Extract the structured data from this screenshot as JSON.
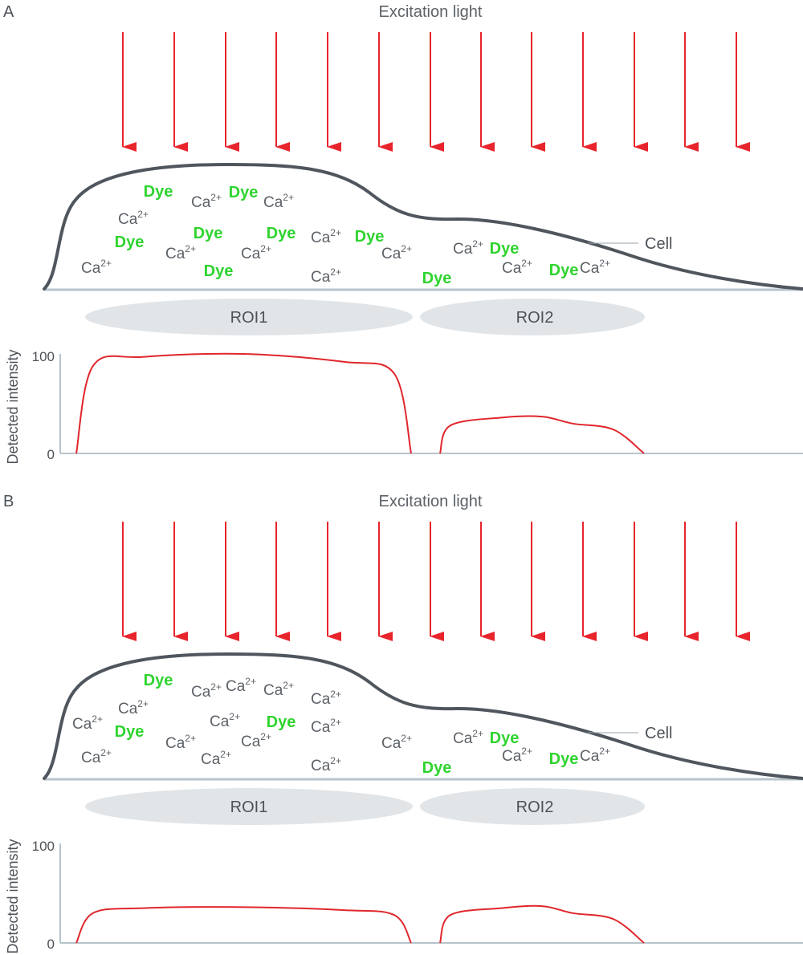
{
  "colors": {
    "arrow": "#e8242c",
    "cell_outline": "#4f565d",
    "baseline": "#b8c4cc",
    "roi_fill": "#e2e5e8",
    "dye": "#2fd42f",
    "ca": "#5d6268",
    "curve": "#e0262c"
  },
  "panels": [
    {
      "id": "A",
      "label": "A",
      "excitation_label": "Excitation light",
      "cell_label": "Cell",
      "rois": [
        "ROI1",
        "ROI2"
      ],
      "ylabel": "Detected intensity",
      "y_ticks": [
        "100",
        "0"
      ],
      "ions": {
        "text": "Ca",
        "charge": "2+"
      },
      "dye_label": "Dye",
      "chart_data": {
        "type": "line",
        "title": "",
        "xlabel": "",
        "ylabel": "Detected intensity",
        "ylim": [
          0,
          100
        ],
        "series": [
          {
            "name": "ROI1",
            "x": [
              0,
              0.05,
              0.2,
              0.5,
              0.8,
              0.95,
              1.0
            ],
            "values": [
              0,
              88,
              97,
              100,
              92,
              80,
              0
            ]
          },
          {
            "name": "ROI2",
            "x": [
              0,
              0.05,
              0.3,
              0.5,
              0.65,
              0.85,
              1.0
            ],
            "values": [
              0,
              28,
              36,
              37,
              30,
              24,
              0
            ]
          }
        ]
      }
    },
    {
      "id": "B",
      "label": "B",
      "excitation_label": "Excitation light",
      "cell_label": "Cell",
      "rois": [
        "ROI1",
        "ROI2"
      ],
      "ylabel": "Detected intensity",
      "y_ticks": [
        "100",
        "0"
      ],
      "ions": {
        "text": "Ca",
        "charge": "2+"
      },
      "dye_label": "Dye",
      "chart_data": {
        "type": "line",
        "title": "",
        "xlabel": "",
        "ylabel": "Detected intensity",
        "ylim": [
          0,
          100
        ],
        "series": [
          {
            "name": "ROI1",
            "x": [
              0,
              0.05,
              0.2,
              0.5,
              0.8,
              0.95,
              1.0
            ],
            "values": [
              0,
              30,
              35,
              36,
              33,
              28,
              0
            ]
          },
          {
            "name": "ROI2",
            "x": [
              0,
              0.05,
              0.3,
              0.5,
              0.65,
              0.85,
              1.0
            ],
            "values": [
              0,
              28,
              35,
              37,
              30,
              24,
              0
            ]
          }
        ]
      }
    }
  ]
}
